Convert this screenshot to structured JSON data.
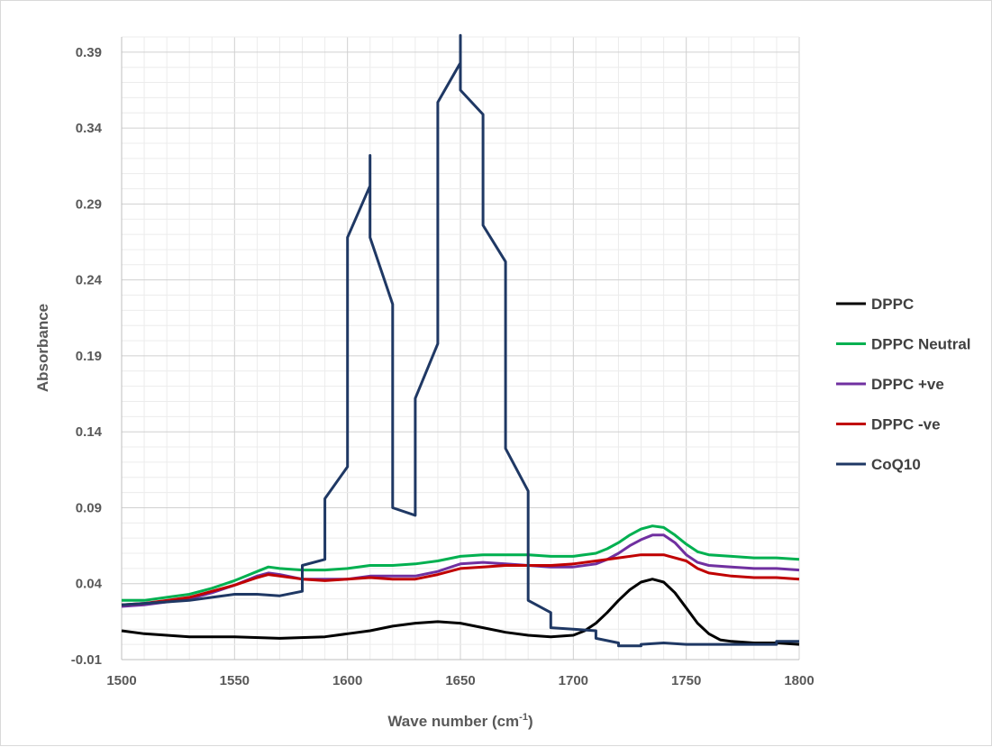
{
  "chart_data": {
    "type": "line",
    "title": "",
    "xlabel_main": "Wave number (cm",
    "xlabel_sup": "-1",
    "xlabel_tail": ")",
    "ylabel": "Absorbance",
    "xlim": [
      1500,
      1800
    ],
    "ylim": [
      -0.01,
      0.4
    ],
    "x_ticks": [
      1500,
      1550,
      1600,
      1650,
      1700,
      1750,
      1800
    ],
    "y_ticks": [
      -0.01,
      0.04,
      0.09,
      0.14,
      0.19,
      0.24,
      0.29,
      0.34,
      0.39
    ],
    "y_tick_labels": [
      "-0.01",
      "0.04",
      "0.09",
      "0.14",
      "0.19",
      "0.24",
      "0.29",
      "0.34",
      "0.39"
    ],
    "grid": true,
    "legend_position": "right",
    "series": [
      {
        "name": "DPPC",
        "color": "#000000",
        "points": [
          [
            1500,
            0.009
          ],
          [
            1510,
            0.007
          ],
          [
            1520,
            0.006
          ],
          [
            1530,
            0.005
          ],
          [
            1550,
            0.005
          ],
          [
            1570,
            0.004
          ],
          [
            1590,
            0.005
          ],
          [
            1600,
            0.007
          ],
          [
            1610,
            0.009
          ],
          [
            1620,
            0.012
          ],
          [
            1630,
            0.014
          ],
          [
            1640,
            0.015
          ],
          [
            1650,
            0.014
          ],
          [
            1660,
            0.011
          ],
          [
            1670,
            0.008
          ],
          [
            1680,
            0.006
          ],
          [
            1690,
            0.005
          ],
          [
            1700,
            0.006
          ],
          [
            1705,
            0.009
          ],
          [
            1710,
            0.014
          ],
          [
            1715,
            0.021
          ],
          [
            1720,
            0.029
          ],
          [
            1725,
            0.036
          ],
          [
            1730,
            0.041
          ],
          [
            1735,
            0.043
          ],
          [
            1740,
            0.041
          ],
          [
            1745,
            0.034
          ],
          [
            1750,
            0.024
          ],
          [
            1755,
            0.014
          ],
          [
            1760,
            0.007
          ],
          [
            1765,
            0.003
          ],
          [
            1770,
            0.002
          ],
          [
            1780,
            0.001
          ],
          [
            1790,
            0.001
          ],
          [
            1800,
            0.0
          ]
        ]
      },
      {
        "name": "DPPC Neutral",
        "color": "#00b050",
        "points": [
          [
            1500,
            0.029
          ],
          [
            1510,
            0.029
          ],
          [
            1520,
            0.031
          ],
          [
            1530,
            0.033
          ],
          [
            1540,
            0.037
          ],
          [
            1550,
            0.042
          ],
          [
            1560,
            0.048
          ],
          [
            1565,
            0.051
          ],
          [
            1570,
            0.05
          ],
          [
            1580,
            0.049
          ],
          [
            1590,
            0.049
          ],
          [
            1600,
            0.05
          ],
          [
            1610,
            0.052
          ],
          [
            1620,
            0.052
          ],
          [
            1630,
            0.053
          ],
          [
            1640,
            0.055
          ],
          [
            1650,
            0.058
          ],
          [
            1660,
            0.059
          ],
          [
            1670,
            0.059
          ],
          [
            1680,
            0.059
          ],
          [
            1690,
            0.058
          ],
          [
            1700,
            0.058
          ],
          [
            1710,
            0.06
          ],
          [
            1715,
            0.063
          ],
          [
            1720,
            0.067
          ],
          [
            1725,
            0.072
          ],
          [
            1730,
            0.076
          ],
          [
            1735,
            0.078
          ],
          [
            1740,
            0.077
          ],
          [
            1745,
            0.072
          ],
          [
            1750,
            0.066
          ],
          [
            1755,
            0.061
          ],
          [
            1760,
            0.059
          ],
          [
            1770,
            0.058
          ],
          [
            1780,
            0.057
          ],
          [
            1790,
            0.057
          ],
          [
            1800,
            0.056
          ]
        ]
      },
      {
        "name": "DPPC +ve",
        "color": "#7030a0",
        "points": [
          [
            1500,
            0.025
          ],
          [
            1510,
            0.026
          ],
          [
            1520,
            0.028
          ],
          [
            1530,
            0.03
          ],
          [
            1540,
            0.034
          ],
          [
            1550,
            0.039
          ],
          [
            1560,
            0.045
          ],
          [
            1565,
            0.047
          ],
          [
            1570,
            0.046
          ],
          [
            1580,
            0.043
          ],
          [
            1590,
            0.043
          ],
          [
            1600,
            0.043
          ],
          [
            1610,
            0.045
          ],
          [
            1620,
            0.045
          ],
          [
            1630,
            0.045
          ],
          [
            1640,
            0.048
          ],
          [
            1650,
            0.053
          ],
          [
            1660,
            0.054
          ],
          [
            1670,
            0.053
          ],
          [
            1680,
            0.052
          ],
          [
            1690,
            0.051
          ],
          [
            1700,
            0.051
          ],
          [
            1710,
            0.053
          ],
          [
            1715,
            0.056
          ],
          [
            1720,
            0.06
          ],
          [
            1725,
            0.065
          ],
          [
            1730,
            0.069
          ],
          [
            1735,
            0.072
          ],
          [
            1740,
            0.072
          ],
          [
            1745,
            0.067
          ],
          [
            1750,
            0.059
          ],
          [
            1755,
            0.054
          ],
          [
            1760,
            0.052
          ],
          [
            1770,
            0.051
          ],
          [
            1780,
            0.05
          ],
          [
            1790,
            0.05
          ],
          [
            1800,
            0.049
          ]
        ]
      },
      {
        "name": "DPPC -ve",
        "color": "#c00000",
        "points": [
          [
            1500,
            0.026
          ],
          [
            1510,
            0.027
          ],
          [
            1520,
            0.029
          ],
          [
            1530,
            0.031
          ],
          [
            1540,
            0.035
          ],
          [
            1550,
            0.039
          ],
          [
            1560,
            0.044
          ],
          [
            1565,
            0.046
          ],
          [
            1570,
            0.045
          ],
          [
            1580,
            0.043
          ],
          [
            1590,
            0.042
          ],
          [
            1600,
            0.043
          ],
          [
            1610,
            0.044
          ],
          [
            1620,
            0.043
          ],
          [
            1630,
            0.043
          ],
          [
            1640,
            0.046
          ],
          [
            1650,
            0.05
          ],
          [
            1660,
            0.051
          ],
          [
            1670,
            0.052
          ],
          [
            1680,
            0.052
          ],
          [
            1690,
            0.052
          ],
          [
            1700,
            0.053
          ],
          [
            1710,
            0.055
          ],
          [
            1720,
            0.057
          ],
          [
            1730,
            0.059
          ],
          [
            1740,
            0.059
          ],
          [
            1750,
            0.055
          ],
          [
            1755,
            0.05
          ],
          [
            1760,
            0.047
          ],
          [
            1770,
            0.045
          ],
          [
            1780,
            0.044
          ],
          [
            1790,
            0.044
          ],
          [
            1800,
            0.043
          ]
        ]
      },
      {
        "name": "CoQ10",
        "color": "#1f3864",
        "points": [
          [
            1500,
            0.026
          ],
          [
            1510,
            0.027
          ],
          [
            1520,
            0.028
          ],
          [
            1530,
            0.029
          ],
          [
            1540,
            0.031
          ],
          [
            1550,
            0.033
          ],
          [
            1560,
            0.033
          ],
          [
            1570,
            0.032
          ],
          [
            1570,
            0.032
          ],
          [
            1580,
            0.035
          ],
          [
            1580,
            0.052
          ],
          [
            1590,
            0.056
          ],
          [
            1590,
            0.096
          ],
          [
            1600,
            0.117
          ],
          [
            1600,
            0.268
          ],
          [
            1610,
            0.302
          ],
          [
            1610,
            0.322
          ],
          [
            1610,
            0.268
          ],
          [
            1620,
            0.224
          ],
          [
            1620,
            0.09
          ],
          [
            1630,
            0.085
          ],
          [
            1630,
            0.162
          ],
          [
            1640,
            0.198
          ],
          [
            1640,
            0.357
          ],
          [
            1650,
            0.383
          ],
          [
            1650,
            0.401
          ],
          [
            1650,
            0.365
          ],
          [
            1660,
            0.349
          ],
          [
            1660,
            0.276
          ],
          [
            1670,
            0.252
          ],
          [
            1670,
            0.129
          ],
          [
            1680,
            0.101
          ],
          [
            1680,
            0.029
          ],
          [
            1690,
            0.021
          ],
          [
            1690,
            0.011
          ],
          [
            1700,
            0.01
          ],
          [
            1710,
            0.009
          ],
          [
            1710,
            0.004
          ],
          [
            1720,
            0.001
          ],
          [
            1720,
            -0.001
          ],
          [
            1730,
            -0.001
          ],
          [
            1730,
            0.0
          ],
          [
            1740,
            0.001
          ],
          [
            1750,
            0.0
          ],
          [
            1760,
            0.0
          ],
          [
            1770,
            0.0
          ],
          [
            1780,
            0.0
          ],
          [
            1790,
            0.0
          ],
          [
            1790,
            0.002
          ],
          [
            1800,
            0.002
          ]
        ]
      }
    ]
  }
}
